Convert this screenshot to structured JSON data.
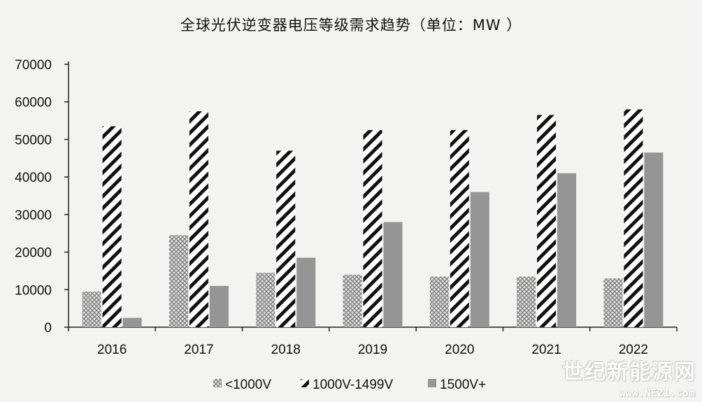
{
  "chart_data": {
    "type": "bar",
    "title": "全球光伏逆变器电压等级需求趋势（单位：MW ）",
    "xlabel": "",
    "ylabel": "",
    "categories": [
      "2016",
      "2017",
      "2018",
      "2019",
      "2020",
      "2021",
      "2022"
    ],
    "series": [
      {
        "name": "<1000V",
        "pattern": "crosshatch",
        "color": "#8a8a8a",
        "values": [
          9500,
          24500,
          14500,
          14000,
          13500,
          13500,
          13000
        ]
      },
      {
        "name": "1000V-1499V",
        "pattern": "diagonal",
        "color": "#111111",
        "values": [
          53500,
          57500,
          47000,
          52500,
          52500,
          56500,
          58000
        ]
      },
      {
        "name": "1500V+",
        "pattern": "solid",
        "color": "#959595",
        "values": [
          2500,
          11000,
          18500,
          28000,
          36000,
          41000,
          46500
        ]
      }
    ],
    "ylim": [
      0,
      70000
    ],
    "yticks": [
      0,
      10000,
      20000,
      30000,
      40000,
      50000,
      60000,
      70000
    ],
    "grid": false,
    "legend_position": "bottom"
  },
  "watermark": {
    "text": "世纪新能源网",
    "url": "www.NE21.com"
  }
}
